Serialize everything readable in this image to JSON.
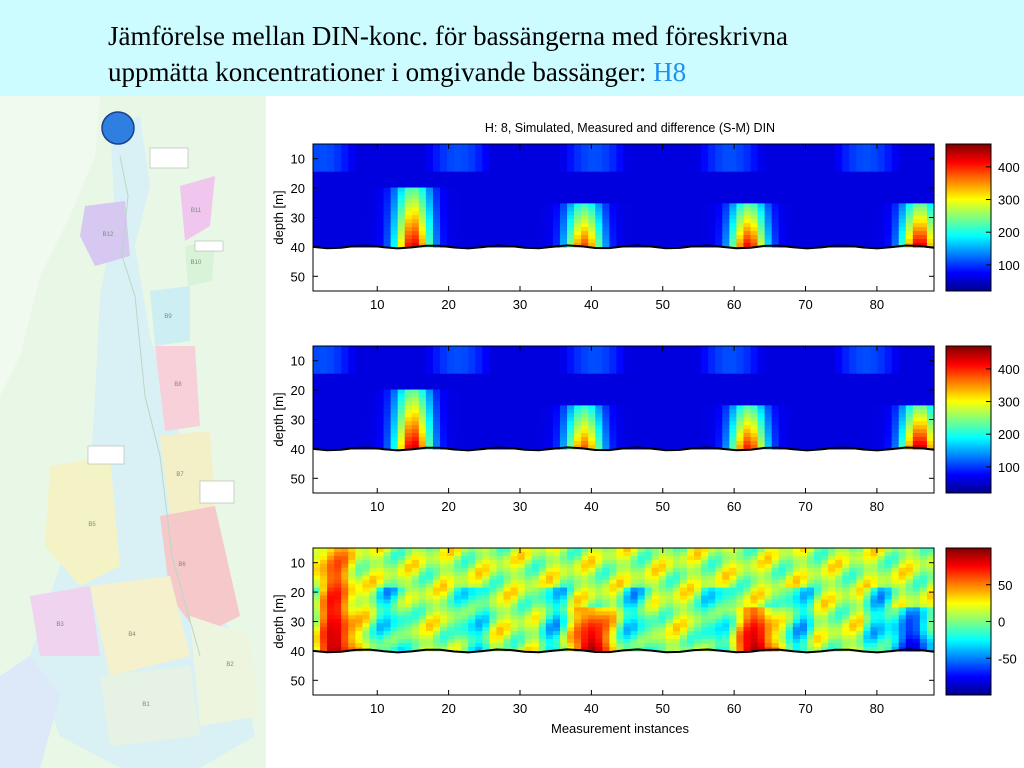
{
  "title": {
    "line1": "Jämförelse mellan DIN-konc. för bassängerna med föreskrivna",
    "line2": "uppmätta koncentrationer i omgivande bassänger: ",
    "accent": "H8"
  },
  "colors": {
    "header_bg": "#ccfcff",
    "accent": "#1f8ff0",
    "marker": "#2f7fe0"
  },
  "map": {
    "marker_icon": "blue-circle-icon",
    "labels": [
      "B12",
      "B11",
      "B10",
      "B9",
      "B8",
      "B7",
      "B6",
      "B5",
      "B4",
      "B3",
      "B2",
      "B1"
    ]
  },
  "chart_data": [
    {
      "type": "heatmap",
      "title": "H: 8, Simulated, Measured and difference (S-M) DIN",
      "xlabel": "",
      "ylabel": "depth [m]",
      "xlim": [
        1,
        88
      ],
      "ylim": [
        55,
        5
      ],
      "x_ticks": [
        10,
        20,
        30,
        40,
        50,
        60,
        70,
        80
      ],
      "y_ticks": [
        10,
        20,
        30,
        40,
        50
      ],
      "bottom_depth": 40,
      "colorbar": {
        "ticks": [
          100,
          200,
          300,
          400
        ],
        "range": [
          20,
          470
        ]
      },
      "hotspots": [
        {
          "center_x": 15,
          "depth_range": [
            20,
            40
          ],
          "peak": 430
        },
        {
          "center_x": 39,
          "depth_range": [
            25,
            40
          ],
          "peak": 390
        },
        {
          "center_x": 62,
          "depth_range": [
            25,
            40
          ],
          "peak": 420
        },
        {
          "center_x": 86,
          "depth_range": [
            25,
            40
          ],
          "peak": 440
        }
      ]
    },
    {
      "type": "heatmap",
      "title": "",
      "xlabel": "",
      "ylabel": "depth [m]",
      "xlim": [
        1,
        88
      ],
      "ylim": [
        55,
        5
      ],
      "x_ticks": [
        10,
        20,
        30,
        40,
        50,
        60,
        70,
        80
      ],
      "y_ticks": [
        10,
        20,
        30,
        40,
        50
      ],
      "bottom_depth": 40,
      "colorbar": {
        "ticks": [
          100,
          200,
          300,
          400
        ],
        "range": [
          20,
          470
        ]
      },
      "hotspots": [
        {
          "center_x": 15,
          "depth_range": [
            20,
            40
          ],
          "peak": 440
        },
        {
          "center_x": 39,
          "depth_range": [
            25,
            40
          ],
          "peak": 380
        },
        {
          "center_x": 62,
          "depth_range": [
            25,
            40
          ],
          "peak": 410
        },
        {
          "center_x": 86,
          "depth_range": [
            25,
            40
          ],
          "peak": 450
        }
      ]
    },
    {
      "type": "heatmap",
      "title": "",
      "xlabel": "Measurement instances",
      "ylabel": "depth [m]",
      "xlim": [
        1,
        88
      ],
      "ylim": [
        55,
        5
      ],
      "x_ticks": [
        10,
        20,
        30,
        40,
        50,
        60,
        70,
        80
      ],
      "y_ticks": [
        10,
        20,
        30,
        40,
        50
      ],
      "bottom_depth": 40,
      "colorbar": {
        "ticks": [
          -50,
          0,
          50
        ],
        "range": [
          -100,
          100
        ]
      },
      "hotspots": [
        {
          "center_x": 4,
          "depth_range": [
            5,
            40
          ],
          "peak": 90
        },
        {
          "center_x": 40,
          "depth_range": [
            25,
            40
          ],
          "peak": 95
        },
        {
          "center_x": 63,
          "depth_range": [
            25,
            40
          ],
          "peak": 95
        },
        {
          "center_x": 85,
          "depth_range": [
            25,
            40
          ],
          "peak": -90
        }
      ]
    }
  ]
}
